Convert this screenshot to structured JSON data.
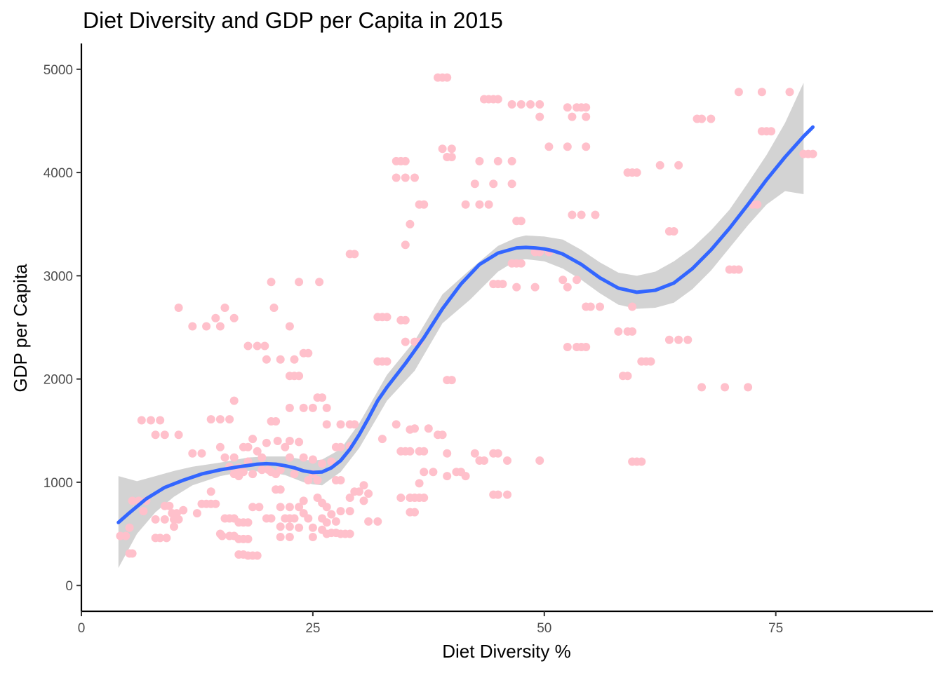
{
  "chart_data": {
    "type": "scatter",
    "title": "Diet Diversity and GDP per Capita in 2015",
    "xlabel": "Diet Diversity %",
    "ylabel": "GDP per Capita",
    "xlim": [
      0,
      92
    ],
    "ylim": [
      -250,
      5250
    ],
    "x_ticks": [
      0,
      25,
      50,
      75
    ],
    "x_tick_labels": [
      "0",
      "25",
      "50",
      "75"
    ],
    "y_ticks": [
      0,
      1000,
      2000,
      3000,
      4000,
      5000
    ],
    "y_tick_labels": [
      "0",
      "1000",
      "2000",
      "3000",
      "4000",
      "5000"
    ],
    "grid": false,
    "legend": "none",
    "colors": {
      "points": "#FFC0CB",
      "smooth_line": "#3366FF",
      "ribbon": "#D3D3D3"
    },
    "points": [
      [
        4.2,
        480
      ],
      [
        4.8,
        480
      ],
      [
        5.2,
        560
      ],
      [
        5.5,
        820
      ],
      [
        6.2,
        820
      ],
      [
        6.7,
        720
      ],
      [
        7,
        820
      ],
      [
        5.2,
        310
      ],
      [
        5.5,
        310
      ],
      [
        6.5,
        1600
      ],
      [
        7.5,
        1600
      ],
      [
        8.5,
        1600
      ],
      [
        8,
        1460
      ],
      [
        9,
        1460
      ],
      [
        10.5,
        1460
      ],
      [
        8,
        460
      ],
      [
        8.5,
        460
      ],
      [
        9.2,
        460
      ],
      [
        8,
        640
      ],
      [
        9,
        640
      ],
      [
        10,
        640
      ],
      [
        10.5,
        640
      ],
      [
        9,
        770
      ],
      [
        9.5,
        770
      ],
      [
        9.8,
        700
      ],
      [
        10,
        570
      ],
      [
        10.3,
        700
      ],
      [
        11,
        730
      ],
      [
        10.5,
        2690
      ],
      [
        12,
        2510
      ],
      [
        13.5,
        2510
      ],
      [
        15,
        2510
      ],
      [
        15.5,
        2690
      ],
      [
        14.5,
        2590
      ],
      [
        16.5,
        2590
      ],
      [
        14,
        1610
      ],
      [
        15,
        1610
      ],
      [
        16,
        1610
      ],
      [
        16.5,
        1790
      ],
      [
        12,
        1280
      ],
      [
        13,
        1280
      ],
      [
        12.5,
        700
      ],
      [
        13,
        790
      ],
      [
        13.5,
        790
      ],
      [
        14,
        790
      ],
      [
        14.5,
        790
      ],
      [
        14,
        910
      ],
      [
        15,
        500
      ],
      [
        15.2,
        480
      ],
      [
        16,
        480
      ],
      [
        16.5,
        480
      ],
      [
        17,
        450
      ],
      [
        17.5,
        450
      ],
      [
        18,
        450
      ],
      [
        17,
        300
      ],
      [
        17.5,
        300
      ],
      [
        18,
        290
      ],
      [
        18.5,
        290
      ],
      [
        19,
        290
      ],
      [
        15.5,
        650
      ],
      [
        16,
        650
      ],
      [
        16.5,
        650
      ],
      [
        17,
        610
      ],
      [
        17.5,
        610
      ],
      [
        18,
        610
      ],
      [
        18.5,
        760
      ],
      [
        19.2,
        760
      ],
      [
        15,
        1340
      ],
      [
        15.5,
        1240
      ],
      [
        16,
        1150
      ],
      [
        16.5,
        1080
      ],
      [
        17,
        1060
      ],
      [
        17.5,
        1340
      ],
      [
        18,
        1200
      ],
      [
        18.5,
        1420
      ],
      [
        19,
        1300
      ],
      [
        19.5,
        1120
      ],
      [
        16.5,
        1240
      ],
      [
        17.5,
        1100
      ],
      [
        18.5,
        1080
      ],
      [
        19.5,
        1240
      ],
      [
        20,
        1380
      ],
      [
        20.5,
        1100
      ],
      [
        17,
        1140
      ],
      [
        18,
        1340
      ],
      [
        18,
        2320
      ],
      [
        19,
        2320
      ],
      [
        19.8,
        2320
      ],
      [
        20,
        2190
      ],
      [
        20.5,
        1590
      ],
      [
        21,
        1590
      ],
      [
        20,
        650
      ],
      [
        20.5,
        650
      ],
      [
        20.2,
        1120
      ],
      [
        21,
        1080
      ],
      [
        21.5,
        1120
      ],
      [
        22,
        1340
      ],
      [
        22.5,
        1240
      ],
      [
        23,
        1080
      ],
      [
        23.5,
        1390
      ],
      [
        24,
        1240
      ],
      [
        21.2,
        1400
      ],
      [
        22.5,
        1400
      ],
      [
        20.5,
        2940
      ],
      [
        20.8,
        2690
      ],
      [
        21.5,
        2190
      ],
      [
        22.5,
        2030
      ],
      [
        23,
        2030
      ],
      [
        23.5,
        2030
      ],
      [
        23,
        2190
      ],
      [
        24,
        2250
      ],
      [
        22.5,
        2510
      ],
      [
        21,
        930
      ],
      [
        21.5,
        930
      ],
      [
        21.5,
        470
      ],
      [
        22.5,
        470
      ],
      [
        21.5,
        570
      ],
      [
        22.5,
        570
      ],
      [
        21.5,
        760
      ],
      [
        22.5,
        760
      ],
      [
        22,
        650
      ],
      [
        22.5,
        650
      ],
      [
        23,
        650
      ],
      [
        23.5,
        560
      ],
      [
        23.5,
        760
      ],
      [
        24,
        820
      ],
      [
        24,
        700
      ],
      [
        24.5,
        650
      ],
      [
        25,
        560
      ],
      [
        25,
        470
      ],
      [
        24.5,
        1020
      ],
      [
        25,
        1220
      ],
      [
        25,
        1080
      ],
      [
        25.5,
        1020
      ],
      [
        23.5,
        2940
      ],
      [
        24,
        1720
      ],
      [
        22.5,
        1720
      ],
      [
        25,
        1720
      ],
      [
        25.5,
        1820
      ],
      [
        26,
        1820
      ],
      [
        26.5,
        1720
      ],
      [
        25.7,
        2940
      ],
      [
        24.5,
        2250
      ],
      [
        25.5,
        850
      ],
      [
        26,
        800
      ],
      [
        26.5,
        760
      ],
      [
        26,
        650
      ],
      [
        26.5,
        610
      ],
      [
        27,
        690
      ],
      [
        26,
        540
      ],
      [
        26.5,
        500
      ],
      [
        27,
        510
      ],
      [
        27.5,
        510
      ],
      [
        26,
        1180
      ],
      [
        27,
        1200
      ],
      [
        27.5,
        1340
      ],
      [
        28,
        1340
      ],
      [
        26.5,
        1560
      ],
      [
        28,
        1560
      ],
      [
        29,
        1560
      ],
      [
        27.5,
        1020
      ],
      [
        28,
        1020
      ],
      [
        29,
        850
      ],
      [
        28,
        500
      ],
      [
        28.5,
        500
      ],
      [
        29,
        500
      ],
      [
        28,
        720
      ],
      [
        29,
        720
      ],
      [
        27.5,
        620
      ],
      [
        29.5,
        910
      ],
      [
        30,
        910
      ],
      [
        30.5,
        820
      ],
      [
        30.5,
        970
      ],
      [
        31,
        620
      ],
      [
        31,
        890
      ],
      [
        29,
        1350
      ],
      [
        29.5,
        1560
      ],
      [
        32,
        620
      ],
      [
        32,
        2600
      ],
      [
        32.5,
        2600
      ],
      [
        33,
        2600
      ],
      [
        32,
        2170
      ],
      [
        32.5,
        2170
      ],
      [
        33,
        2170
      ],
      [
        32.5,
        1420
      ],
      [
        29,
        3210
      ],
      [
        29.5,
        3210
      ],
      [
        34,
        3950
      ],
      [
        34,
        4110
      ],
      [
        34.5,
        4110
      ],
      [
        35,
        4110
      ],
      [
        35,
        3950
      ],
      [
        35.5,
        3500
      ],
      [
        35,
        3300
      ],
      [
        34.5,
        2570
      ],
      [
        35,
        2570
      ],
      [
        35,
        2360
      ],
      [
        34,
        1560
      ],
      [
        34.5,
        1300
      ],
      [
        35,
        1300
      ],
      [
        35.5,
        1510
      ],
      [
        35.5,
        1300
      ],
      [
        36,
        1520
      ],
      [
        36.5,
        1300
      ],
      [
        37,
        1300
      ],
      [
        37.5,
        1520
      ],
      [
        34.5,
        850
      ],
      [
        35.5,
        850
      ],
      [
        36,
        850
      ],
      [
        36.5,
        850
      ],
      [
        37,
        850
      ],
      [
        35.5,
        710
      ],
      [
        36,
        710
      ],
      [
        36,
        2360
      ],
      [
        36.5,
        2360
      ],
      [
        36,
        3950
      ],
      [
        36.5,
        3690
      ],
      [
        37,
        3690
      ],
      [
        36.5,
        990
      ],
      [
        37,
        1100
      ],
      [
        38,
        1100
      ],
      [
        38.5,
        1460
      ],
      [
        39,
        1460
      ],
      [
        38.5,
        4920
      ],
      [
        39,
        4920
      ],
      [
        39.5,
        4920
      ],
      [
        39,
        4230
      ],
      [
        39.5,
        4150
      ],
      [
        40,
        4150
      ],
      [
        40,
        4230
      ],
      [
        39.5,
        1990
      ],
      [
        40,
        1990
      ],
      [
        39.5,
        1280
      ],
      [
        40.5,
        1100
      ],
      [
        41,
        1100
      ],
      [
        39.5,
        1060
      ],
      [
        41.5,
        1060
      ],
      [
        42.5,
        1280
      ],
      [
        43,
        1210
      ],
      [
        43.5,
        1210
      ],
      [
        41.5,
        3690
      ],
      [
        42.5,
        3890
      ],
      [
        43,
        3690
      ],
      [
        44,
        3690
      ],
      [
        43,
        4110
      ],
      [
        44.5,
        3890
      ],
      [
        44.5,
        2920
      ],
      [
        45,
        2920
      ],
      [
        45,
        4110
      ],
      [
        43.5,
        4710
      ],
      [
        44,
        4710
      ],
      [
        44.5,
        4710
      ],
      [
        45,
        4710
      ],
      [
        45.5,
        2920
      ],
      [
        44.5,
        1280
      ],
      [
        45,
        1280
      ],
      [
        44.5,
        880
      ],
      [
        45,
        880
      ],
      [
        46,
        880
      ],
      [
        46,
        1210
      ],
      [
        46.5,
        3120
      ],
      [
        47,
        3120
      ],
      [
        47.5,
        3120
      ],
      [
        47,
        3530
      ],
      [
        47.5,
        3530
      ],
      [
        47,
        2890
      ],
      [
        46.5,
        4110
      ],
      [
        46.5,
        3890
      ],
      [
        46.5,
        4660
      ],
      [
        47.5,
        4660
      ],
      [
        48.5,
        4660
      ],
      [
        49.5,
        4660
      ],
      [
        49.5,
        4540
      ],
      [
        49,
        3230
      ],
      [
        49.5,
        3230
      ],
      [
        50.5,
        3230
      ],
      [
        49,
        2890
      ],
      [
        49.5,
        1210
      ],
      [
        50.5,
        4250
      ],
      [
        52.5,
        4630
      ],
      [
        53.5,
        4630
      ],
      [
        54,
        4630
      ],
      [
        54.5,
        4630
      ],
      [
        53,
        4540
      ],
      [
        54.5,
        4540
      ],
      [
        52.5,
        4250
      ],
      [
        54.5,
        4250
      ],
      [
        53,
        3590
      ],
      [
        54,
        3590
      ],
      [
        52,
        2960
      ],
      [
        52.5,
        2890
      ],
      [
        53.5,
        2960
      ],
      [
        52.5,
        2310
      ],
      [
        53.5,
        2310
      ],
      [
        54,
        2310
      ],
      [
        54.5,
        2310
      ],
      [
        54.5,
        2700
      ],
      [
        55,
        2700
      ],
      [
        55.5,
        3590
      ],
      [
        56,
        2700
      ],
      [
        58,
        2460
      ],
      [
        59,
        2460
      ],
      [
        59.5,
        2460
      ],
      [
        58.5,
        2030
      ],
      [
        59,
        2030
      ],
      [
        59,
        4000
      ],
      [
        59.5,
        4000
      ],
      [
        60,
        4000
      ],
      [
        59.5,
        1200
      ],
      [
        60,
        1200
      ],
      [
        60.5,
        1200
      ],
      [
        59.5,
        2700
      ],
      [
        60.5,
        2170
      ],
      [
        61,
        2170
      ],
      [
        61.5,
        2170
      ],
      [
        62.5,
        4070
      ],
      [
        63.5,
        3430
      ],
      [
        64,
        3430
      ],
      [
        64.5,
        4070
      ],
      [
        63.5,
        2380
      ],
      [
        64.5,
        2380
      ],
      [
        65.5,
        2380
      ],
      [
        66.5,
        4520
      ],
      [
        67,
        4520
      ],
      [
        68,
        4520
      ],
      [
        67,
        1920
      ],
      [
        69.5,
        1920
      ],
      [
        70,
        3060
      ],
      [
        70.5,
        3060
      ],
      [
        71,
        3060
      ],
      [
        72,
        1920
      ],
      [
        72.5,
        3690
      ],
      [
        73,
        3690
      ],
      [
        71,
        4780
      ],
      [
        73.5,
        4400
      ],
      [
        74,
        4400
      ],
      [
        74.5,
        4400
      ],
      [
        73.5,
        4780
      ],
      [
        76.5,
        4780
      ],
      [
        78,
        4180
      ],
      [
        78.5,
        4180
      ],
      [
        79,
        4180
      ]
    ],
    "smooth_line": {
      "x": [
        4,
        5,
        7,
        9,
        11,
        13,
        15,
        17,
        19,
        20,
        21,
        22,
        23,
        24,
        25,
        26,
        27,
        28,
        29,
        30,
        31,
        32,
        33,
        35,
        37,
        39,
        41,
        43,
        45,
        47,
        48,
        49,
        50,
        51,
        52,
        54,
        56,
        58,
        60,
        62,
        64,
        66,
        68,
        70,
        72,
        74,
        76,
        78,
        79
      ],
      "y": [
        610,
        690,
        840,
        950,
        1020,
        1080,
        1120,
        1150,
        1175,
        1180,
        1175,
        1160,
        1140,
        1110,
        1095,
        1100,
        1140,
        1210,
        1320,
        1460,
        1620,
        1790,
        1920,
        2150,
        2400,
        2680,
        2920,
        3110,
        3220,
        3270,
        3275,
        3270,
        3260,
        3240,
        3210,
        3110,
        2980,
        2880,
        2840,
        2860,
        2930,
        3070,
        3250,
        3460,
        3690,
        3930,
        4150,
        4350,
        4440
      ]
    },
    "ribbon": {
      "x": [
        4,
        6,
        8,
        10,
        12,
        15,
        18,
        20,
        22,
        24,
        25,
        26,
        28,
        30,
        33,
        36,
        39,
        42,
        45,
        47,
        48,
        50,
        52,
        54,
        56,
        58,
        60,
        62,
        64,
        66,
        68,
        70,
        72,
        74,
        76,
        78
      ],
      "upper": [
        1060,
        1010,
        1060,
        1110,
        1150,
        1190,
        1240,
        1250,
        1250,
        1220,
        1210,
        1220,
        1320,
        1570,
        2040,
        2370,
        2820,
        3060,
        3290,
        3370,
        3390,
        3380,
        3350,
        3250,
        3130,
        3030,
        3000,
        3040,
        3140,
        3270,
        3440,
        3640,
        3900,
        4170,
        4480,
        4870
      ],
      "lower": [
        170,
        500,
        710,
        860,
        970,
        1060,
        1110,
        1100,
        1070,
        1000,
        980,
        970,
        1100,
        1330,
        1790,
        2080,
        2540,
        2770,
        3040,
        3150,
        3160,
        3140,
        3070,
        2960,
        2830,
        2720,
        2680,
        2690,
        2740,
        2870,
        3050,
        3270,
        3490,
        3690,
        3820,
        3790
      ]
    }
  }
}
